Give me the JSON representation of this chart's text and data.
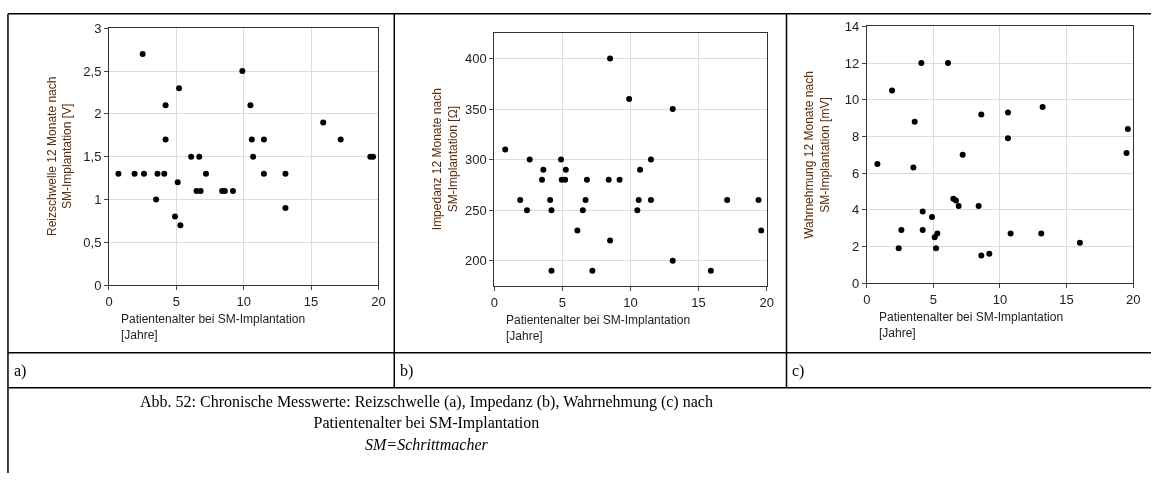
{
  "chart_data": [
    {
      "type": "scatter",
      "xlabel": "Patientenalter bei SM-Implantation [Jahre]",
      "ylabel": "Reizschwelle 12 Monate nach SM-Implantation [V]",
      "annotations": [
        "a)",
        "Abb. 52: Chronische Messwerte: Reizschwelle (a), Impedanz (b), Wahrnehmung (c) nach Patientenalter bei SM-Implantation",
        "SM=Schrittmacher"
      ],
      "xlim": [
        0,
        20
      ],
      "xticks": [
        0,
        5,
        10,
        15,
        20
      ],
      "ylim": [
        0,
        3
      ],
      "yticks": [
        0,
        {
          "value": 0.5,
          "label": "0,5"
        },
        1,
        {
          "value": 1.5,
          "label": "1,5"
        },
        2,
        {
          "value": 2.5,
          "label": "2,5"
        },
        3
      ],
      "grid": true,
      "marker": "circle",
      "series": [
        {
          "color": "#000000",
          "x": [
            0.7,
            1.9,
            2.6,
            2.5,
            3.6,
            3.5,
            4.1,
            4.2,
            4.2,
            4.9,
            5.1,
            5.2,
            5.3,
            6.1,
            6.5,
            6.7,
            6.8,
            7.2,
            8.4,
            8.6,
            9.2,
            9.9,
            10.5,
            10.6,
            10.7,
            11.5,
            11.5,
            13.1,
            13.1,
            15.9,
            17.2,
            19.4,
            19.6
          ],
          "values": [
            1.3,
            1.3,
            1.3,
            2.7,
            1.3,
            1.0,
            1.3,
            2.1,
            1.7,
            0.8,
            1.2,
            2.3,
            0.7,
            1.5,
            1.1,
            1.5,
            1.1,
            1.3,
            1.1,
            1.1,
            1.1,
            2.5,
            2.1,
            1.7,
            1.5,
            1.7,
            1.3,
            1.3,
            0.9,
            1.9,
            1.7,
            1.5,
            1.5
          ]
        }
      ]
    },
    {
      "type": "scatter",
      "xlabel": "Patientenalter bei SM-Implantation [Jahre]",
      "ylabel": "Impedanz 12 Monate nach SM-Implantation [Ω]",
      "annotations": [
        "b)"
      ],
      "xlim": [
        0,
        20
      ],
      "xticks": [
        0,
        5,
        10,
        15,
        20
      ],
      "ylim": [
        175,
        425
      ],
      "yticks": [
        200,
        250,
        300,
        350,
        400
      ],
      "grid": true,
      "marker": "circle",
      "series": [
        {
          "color": "#000000",
          "x": [
            0.8,
            1.9,
            2.4,
            2.6,
            3.5,
            3.6,
            4.1,
            4.2,
            4.2,
            4.9,
            4.95,
            5.2,
            5.25,
            6.1,
            6.5,
            6.7,
            6.8,
            7.2,
            8.4,
            8.5,
            8.5,
            9.2,
            9.9,
            10.5,
            10.6,
            10.7,
            11.5,
            11.5,
            13.1,
            13.1,
            15.9,
            17.1,
            19.4,
            19.6
          ],
          "values": [
            310,
            260,
            250,
            300,
            280,
            290,
            260,
            250,
            190,
            300,
            280,
            280,
            290,
            230,
            250,
            260,
            280,
            190,
            280,
            400,
            220,
            280,
            360,
            250,
            260,
            290,
            300,
            260,
            350,
            200,
            190,
            260,
            260,
            230
          ]
        }
      ]
    },
    {
      "type": "scatter",
      "xlabel": "Patientenalter bei SM-Implantation [Jahre]",
      "ylabel": "Wahrnehmung 12 Monate nach SM-Implantation [mV]",
      "annotations": [
        "c)"
      ],
      "xlim": [
        0,
        20
      ],
      "xticks": [
        0,
        5,
        10,
        15,
        20
      ],
      "ylim": [
        0,
        14
      ],
      "yticks": [
        0,
        2,
        4,
        6,
        8,
        10,
        12,
        14
      ],
      "grid": true,
      "marker": "circle",
      "series": [
        {
          "color": "#000000",
          "x": [
            0.8,
            1.9,
            2.4,
            2.6,
            3.5,
            3.6,
            4.1,
            4.2,
            4.2,
            4.9,
            5.1,
            5.2,
            5.3,
            6.1,
            6.5,
            6.7,
            6.9,
            7.2,
            8.4,
            8.6,
            8.6,
            9.2,
            10.6,
            10.6,
            10.8,
            13.1,
            13.2,
            16.0,
            19.5,
            19.6
          ],
          "values": [
            6.5,
            10.5,
            1.9,
            2.9,
            6.3,
            8.8,
            12.0,
            3.9,
            2.9,
            3.6,
            2.5,
            1.9,
            2.7,
            12.0,
            4.6,
            4.5,
            4.2,
            7.0,
            4.2,
            9.2,
            1.5,
            1.6,
            9.3,
            7.9,
            2.7,
            2.7,
            9.6,
            2.2,
            7.1,
            8.4
          ]
        }
      ]
    }
  ]
}
